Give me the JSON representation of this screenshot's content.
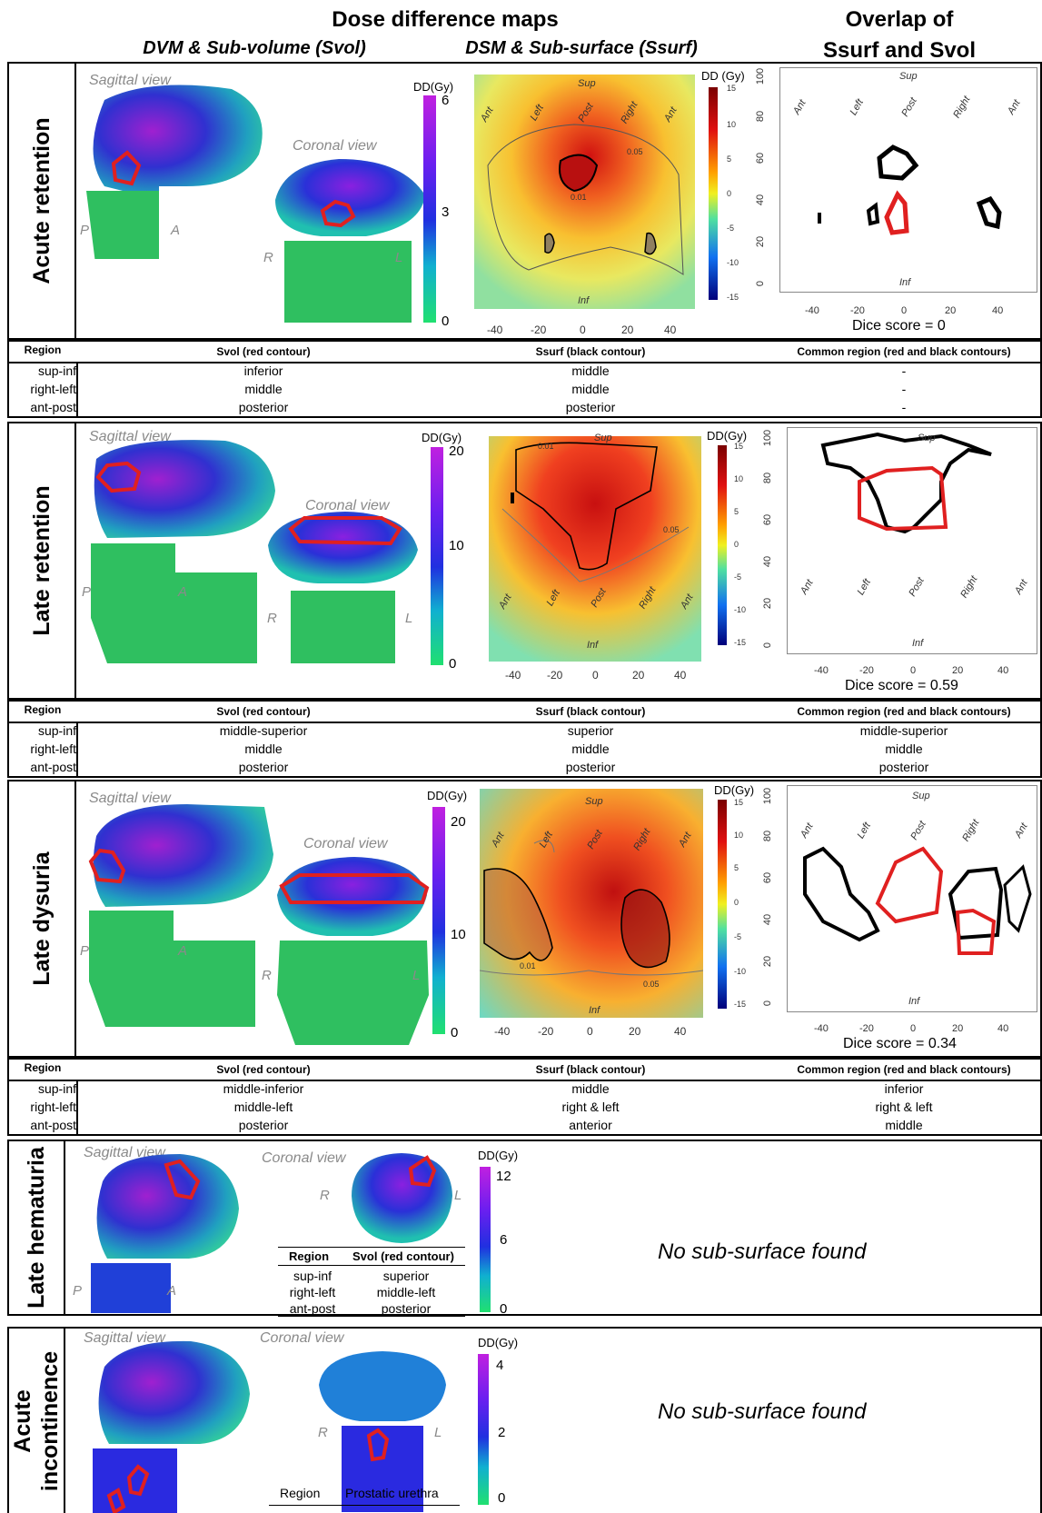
{
  "header": {
    "title": "Dose difference maps",
    "col1": "DVM & Sub-volume (Svol)",
    "col2": "DSM & Sub-surface (Ssurf)",
    "col3_line1": "Overlap of",
    "col3_line2": "Ssurf and Svol"
  },
  "common": {
    "sagittal": "Sagittal view",
    "coronal": "Coronal view",
    "P": "P",
    "A": "A",
    "R": "R",
    "L": "L",
    "ddgy": "DD(Gy)",
    "ddgy_space": "DD (Gy)",
    "sup": "Sup",
    "inf": "Inf",
    "ant": "Ant",
    "left": "Left",
    "post": "Post",
    "right": "Right",
    "region": "Region",
    "svol_red": "Svol (red contour)",
    "ssurf_black": "Ssurf (black contour)",
    "common_region": "Common region (red and black contours)",
    "sup_inf": "sup-inf",
    "right_left": "right-left",
    "ant_post": "ant-post",
    "no_subsurface": "No sub-surface found",
    "contour_001": "0.01",
    "contour_005": "0.05"
  },
  "axes": {
    "x_ticks": [
      "-40",
      "-20",
      "0",
      "20",
      "40"
    ],
    "y_ticks": [
      "0",
      "20",
      "40",
      "60",
      "80",
      "100"
    ],
    "dsm_ticks": [
      "15",
      "10",
      "5",
      "0",
      "-5",
      "-10",
      "-15"
    ]
  },
  "panels": [
    {
      "label": "Acute retention",
      "cbar": [
        "6",
        "3",
        "0"
      ],
      "dice": "Dice score = 0",
      "svol": [
        "inferior",
        "middle",
        "posterior"
      ],
      "ssurf": [
        "middle",
        "middle",
        "posterior"
      ],
      "common": [
        "-",
        "-",
        "-"
      ]
    },
    {
      "label": "Late retention",
      "cbar": [
        "20",
        "10",
        "0"
      ],
      "dice": "Dice score = 0.59",
      "svol": [
        "middle-superior",
        "middle",
        "posterior"
      ],
      "ssurf": [
        "superior",
        "middle",
        "posterior"
      ],
      "common": [
        "middle-superior",
        "middle",
        "posterior"
      ]
    },
    {
      "label": "Late dysuria",
      "cbar": [
        "20",
        "10",
        "0"
      ],
      "dice": "Dice score = 0.34",
      "svol": [
        "middle-inferior",
        "middle-left",
        "posterior"
      ],
      "ssurf": [
        "middle",
        "right & left",
        "anterior"
      ],
      "common": [
        "inferior",
        "right & left",
        "middle"
      ]
    },
    {
      "label": "Late hematuria",
      "cbar": [
        "12",
        "6",
        "0"
      ],
      "svol": [
        "superior",
        "middle-left",
        "posterior"
      ]
    },
    {
      "label_line1": "Acute",
      "label_line2": "incontinence",
      "cbar": [
        "4",
        "2",
        "0"
      ],
      "region_value": "Prostatic urethra"
    }
  ]
}
